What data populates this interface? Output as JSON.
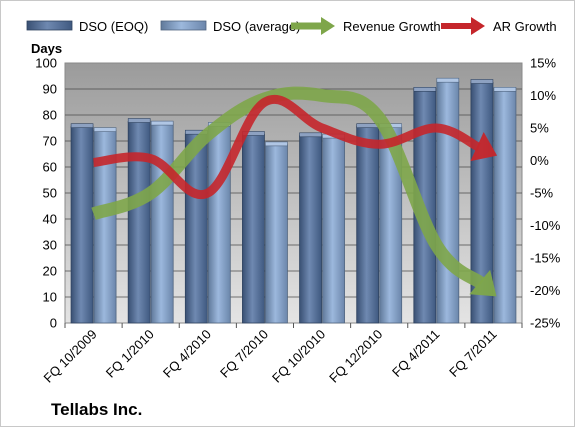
{
  "chart_data": {
    "type": "bar",
    "title": "",
    "company_label": "Tellabs Inc.",
    "y_left_title": "Days",
    "categories": [
      "FQ 10/2009",
      "FQ 1/2010",
      "FQ 4/2010",
      "FQ 7/2010",
      "FQ 10/2010",
      "FQ 12/2010",
      "FQ 4/2011",
      "FQ 7/2011"
    ],
    "y_left": {
      "min": 0,
      "max": 100,
      "step": 10,
      "ticks": [
        "0",
        "10",
        "20",
        "30",
        "40",
        "50",
        "60",
        "70",
        "80",
        "90",
        "100"
      ]
    },
    "y_right": {
      "min": -25,
      "max": 15,
      "step": 5,
      "ticks": [
        "-25%",
        "-20%",
        "-15%",
        "-10%",
        "-5%",
        "0%",
        "5%",
        "10%",
        "15%"
      ]
    },
    "grid": true,
    "legend_position": "top",
    "series": [
      {
        "name": "DSO (EOQ)",
        "kind": "bar",
        "axis": "left",
        "color": "#4f6fa0",
        "values": [
          75.5,
          77.5,
          73,
          72.5,
          72,
          75.5,
          89.5,
          92.5
        ]
      },
      {
        "name": "DSO (average)",
        "kind": "bar",
        "axis": "left",
        "color": "#86a8d6",
        "values": [
          74,
          76.5,
          76,
          68.5,
          71.5,
          75.5,
          93,
          89.5
        ]
      },
      {
        "name": "Revenue Growth",
        "kind": "arrow-line",
        "axis": "right",
        "color": "#7ea64a",
        "values": [
          -8.2,
          -5,
          4,
          9.5,
          10,
          6.5,
          -13,
          -20.5
        ]
      },
      {
        "name": "AR Growth",
        "kind": "arrow-line",
        "axis": "right",
        "color": "#c5262b",
        "values": [
          -0.3,
          0.3,
          -5,
          9,
          5,
          2.5,
          5,
          1
        ]
      }
    ]
  }
}
